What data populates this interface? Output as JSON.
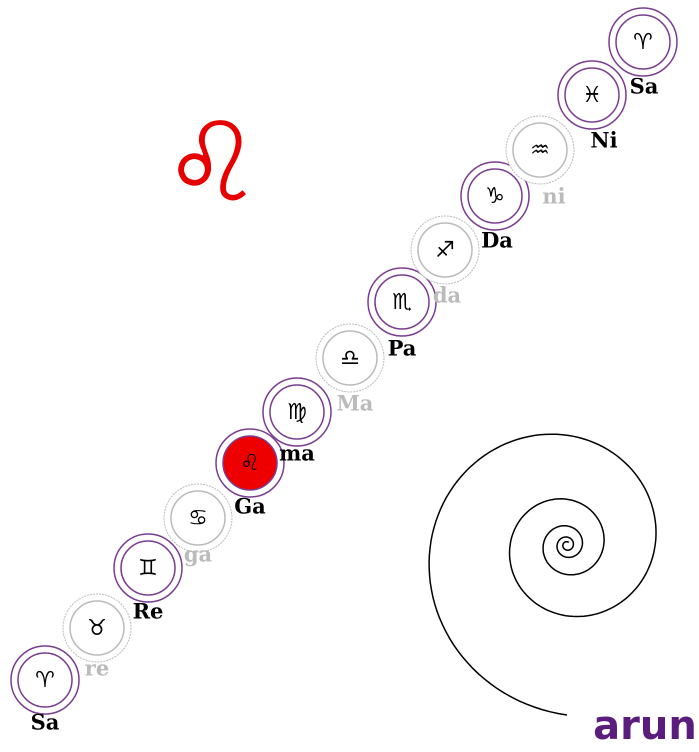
{
  "hero_symbol": "♌",
  "logo": "arun",
  "nodes": [
    {
      "symbol": "♈",
      "label": "Sa",
      "color": "#7a3d8f"
    },
    {
      "symbol": "♉",
      "label": "re",
      "color": "#bbbbbb"
    },
    {
      "symbol": "♊",
      "label": "Re",
      "color": "#7a3d8f"
    },
    {
      "symbol": "♋",
      "label": "ga",
      "color": "#bbbbbb"
    },
    {
      "symbol": "♌",
      "label": "Ga",
      "color": "#7a3d8f",
      "fill": "#ee0000"
    },
    {
      "symbol": "♍",
      "label": "ma",
      "color": "#7a3d8f"
    },
    {
      "symbol": "♎",
      "label": "Ma",
      "color": "#bbbbbb"
    },
    {
      "symbol": "♏",
      "label": "Pa",
      "color": "#7a3d8f"
    },
    {
      "symbol": "♐",
      "label": "da",
      "color": "#bbbbbb"
    },
    {
      "symbol": "♑",
      "label": "Da",
      "color": "#7a3d8f"
    },
    {
      "symbol": "♒",
      "label": "ni",
      "color": "#bbbbbb"
    },
    {
      "symbol": "♓",
      "label": "Ni",
      "color": "#7a3d8f"
    },
    {
      "symbol": "♈",
      "label": "Sa",
      "color": "#7a3d8f"
    }
  ]
}
